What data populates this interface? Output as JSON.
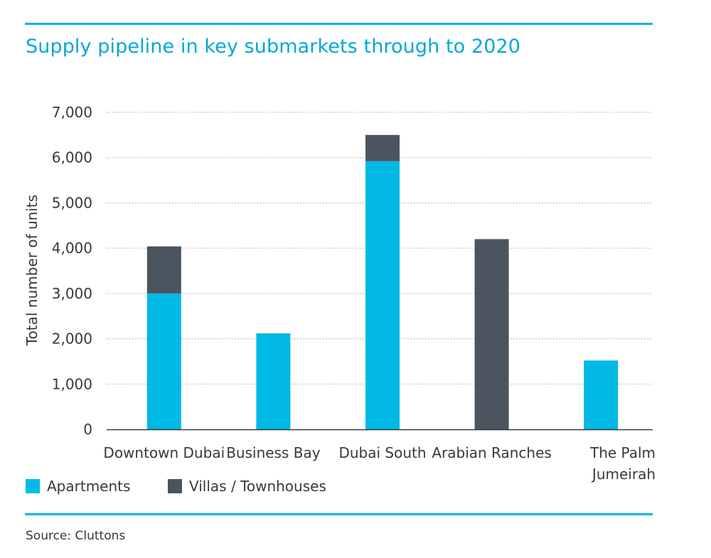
{
  "title": "Supply pipeline in key submarkets through to 2020",
  "source": "Source: Cluttons",
  "colors": {
    "accent": "#00b5e2",
    "apartments": "#00b9e4",
    "villas": "#4a555f",
    "text": "#333a40"
  },
  "legend": {
    "apartments": "Apartments",
    "villas": "Villas / Townhouses"
  },
  "chart_data": {
    "type": "bar",
    "stacked": true,
    "title": "Supply pipeline in key submarkets through to 2020",
    "xlabel": "",
    "ylabel": "Total number of units",
    "ylim": [
      0,
      7000
    ],
    "yticks": [
      0,
      1000,
      2000,
      3000,
      4000,
      5000,
      6000,
      7000
    ],
    "ytick_labels": [
      "0",
      "1,000",
      "2,000",
      "3,000",
      "4,000",
      "5,000",
      "6,000",
      "7,000"
    ],
    "grid": true,
    "legend_position": "bottom-left",
    "categories": [
      [
        "Downtown Dubai"
      ],
      [
        "Business Bay"
      ],
      [
        "Dubai South"
      ],
      [
        "Arabian Ranches"
      ],
      [
        "The Palm",
        "Jumeirah"
      ]
    ],
    "series": [
      {
        "name": "Apartments",
        "color": "#00b9e4",
        "values": [
          3000,
          2120,
          5920,
          0,
          1520
        ]
      },
      {
        "name": "Villas / Townhouses",
        "color": "#4a555f",
        "values": [
          1040,
          0,
          580,
          4200,
          0
        ]
      }
    ]
  }
}
